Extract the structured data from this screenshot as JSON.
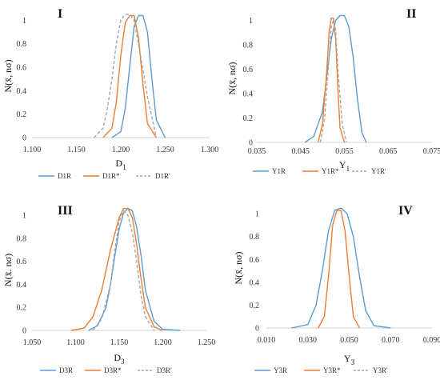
{
  "figure": {
    "ylabel": "N(x̄, nσ)"
  },
  "chart_data": [
    {
      "id": "I",
      "type": "line",
      "panel_label": "I",
      "xlabel_main": "D",
      "xlabel_sub": "1",
      "ylabel": "N(x̄, nσ)",
      "xlim": [
        1.1,
        1.3
      ],
      "ylim": [
        0,
        1.05
      ],
      "xticks": [
        1.1,
        1.15,
        1.2,
        1.25,
        1.3
      ],
      "xtick_labels": [
        "1.100",
        "1.150",
        "1.200",
        "1.250",
        "1.300"
      ],
      "yticks": [
        0,
        0.2,
        0.4,
        0.6,
        0.8,
        1
      ],
      "ytick_labels": [
        "0",
        "0.2",
        "0.4",
        "0.6",
        "0.8",
        "1"
      ],
      "legend_position": "bottom",
      "series": [
        {
          "name": "D1R",
          "color": "#5b9bd5",
          "dashed": false,
          "x": [
            1.19,
            1.2,
            1.205,
            1.21,
            1.215,
            1.22,
            1.225,
            1.23,
            1.235,
            1.24,
            1.25
          ],
          "y": [
            0,
            0.05,
            0.25,
            0.6,
            0.95,
            1.04,
            1.04,
            0.9,
            0.5,
            0.15,
            0
          ]
        },
        {
          "name": "D1R*",
          "color": "#ed7d31",
          "dashed": false,
          "x": [
            1.18,
            1.19,
            1.195,
            1.2,
            1.205,
            1.21,
            1.215,
            1.22,
            1.225,
            1.23,
            1.24
          ],
          "y": [
            0,
            0.08,
            0.3,
            0.7,
            0.98,
            1.04,
            1.04,
            0.85,
            0.45,
            0.12,
            0
          ]
        },
        {
          "name": "D1R'",
          "color": "#a5a5a5",
          "dashed": true,
          "x": [
            1.17,
            1.18,
            1.185,
            1.19,
            1.195,
            1.2,
            1.205,
            1.21,
            1.215,
            1.22,
            1.23,
            1.24
          ],
          "y": [
            0,
            0.08,
            0.25,
            0.5,
            0.8,
            1.0,
            1.05,
            1.05,
            1.0,
            0.8,
            0.35,
            0
          ]
        }
      ]
    },
    {
      "id": "II",
      "type": "line",
      "panel_label": "II",
      "xlabel_main": "Y",
      "xlabel_sub": "1",
      "ylabel": "N(x̄, nσ)",
      "xlim": [
        0.035,
        0.075
      ],
      "ylim": [
        0,
        1.05
      ],
      "xticks": [
        0.035,
        0.045,
        0.055,
        0.065,
        0.075
      ],
      "xtick_labels": [
        "0.035",
        "0.045",
        "0.055",
        "0.065",
        "0.075"
      ],
      "yticks": [
        0,
        0.2,
        0.4,
        0.6,
        0.8,
        1
      ],
      "ytick_labels": [
        "0",
        "0.2",
        "0.4",
        "0.6",
        "0.8",
        "1"
      ],
      "legend_position": "bottom",
      "series": [
        {
          "name": "Y1R",
          "color": "#5b9bd5",
          "dashed": false,
          "x": [
            0.046,
            0.048,
            0.05,
            0.051,
            0.052,
            0.053,
            0.054,
            0.055,
            0.056,
            0.057,
            0.058,
            0.059,
            0.06
          ],
          "y": [
            0,
            0.05,
            0.25,
            0.55,
            0.85,
            1.0,
            1.04,
            1.04,
            0.95,
            0.7,
            0.35,
            0.08,
            0
          ]
        },
        {
          "name": "Y1R*",
          "color": "#ed7d31",
          "dashed": false,
          "x": [
            0.049,
            0.05,
            0.051,
            0.0515,
            0.052,
            0.0525,
            0.053,
            0.0535,
            0.054,
            0.055
          ],
          "y": [
            0,
            0.15,
            0.6,
            0.9,
            1.02,
            1.02,
            0.85,
            0.45,
            0.12,
            0
          ]
        },
        {
          "name": "Y1R'",
          "color": "#a5a5a5",
          "dashed": true,
          "x": [
            0.0495,
            0.0505,
            0.0515,
            0.052,
            0.0525,
            0.053,
            0.0535,
            0.0545,
            0.0555
          ],
          "y": [
            0,
            0.2,
            0.7,
            0.95,
            1.0,
            0.92,
            0.6,
            0.15,
            0
          ]
        }
      ]
    },
    {
      "id": "III",
      "type": "line",
      "panel_label": "III",
      "xlabel_main": "D",
      "xlabel_sub": "3",
      "ylabel": "N(x̄. nσ)",
      "xlim": [
        1.05,
        1.25
      ],
      "ylim": [
        0,
        1.05
      ],
      "xticks": [
        1.05,
        1.1,
        1.15,
        1.2,
        1.25
      ],
      "xtick_labels": [
        "1.050",
        "1.100",
        "1.150",
        "1.200",
        "1.250"
      ],
      "yticks": [
        0,
        0.2,
        0.4,
        0.6,
        0.8,
        1
      ],
      "ytick_labels": [
        "0",
        "0.2",
        "0.4",
        "0.6",
        "0.8",
        "1"
      ],
      "legend_position": "bottom",
      "series": [
        {
          "name": "D3R",
          "color": "#5b9bd5",
          "dashed": false,
          "x": [
            1.115,
            1.125,
            1.135,
            1.14,
            1.145,
            1.15,
            1.155,
            1.16,
            1.165,
            1.17,
            1.175,
            1.18,
            1.19,
            1.2,
            1.22
          ],
          "y": [
            0,
            0.04,
            0.2,
            0.4,
            0.65,
            0.88,
            1.02,
            1.06,
            1.04,
            0.9,
            0.65,
            0.35,
            0.08,
            0.01,
            0
          ]
        },
        {
          "name": "D3R*",
          "color": "#ed7d31",
          "dashed": false,
          "x": [
            1.095,
            1.11,
            1.12,
            1.13,
            1.14,
            1.15,
            1.155,
            1.16,
            1.165,
            1.17,
            1.175,
            1.18,
            1.19,
            1.2
          ],
          "y": [
            0,
            0.02,
            0.12,
            0.35,
            0.7,
            0.98,
            1.06,
            1.06,
            0.98,
            0.75,
            0.45,
            0.2,
            0.03,
            0
          ]
        },
        {
          "name": "D3R'",
          "color": "#a5a5a5",
          "dashed": true,
          "x": [
            1.12,
            1.13,
            1.14,
            1.145,
            1.15,
            1.155,
            1.16,
            1.165,
            1.17,
            1.175,
            1.18,
            1.19
          ],
          "y": [
            0,
            0.1,
            0.4,
            0.7,
            0.95,
            1.04,
            1.0,
            0.85,
            0.6,
            0.3,
            0.12,
            0
          ]
        }
      ]
    },
    {
      "id": "IV",
      "type": "line",
      "panel_label": "IV",
      "xlabel_main": "Y",
      "xlabel_sub": "3",
      "ylabel": "N(x̄, nσ)",
      "xlim": [
        0.01,
        0.09
      ],
      "ylim": [
        0,
        1.05
      ],
      "xticks": [
        0.01,
        0.03,
        0.05,
        0.07,
        0.09
      ],
      "xtick_labels": [
        "0.010",
        "0.030",
        "0.050",
        "0.070",
        "0.090"
      ],
      "yticks": [
        0,
        0.2,
        0.4,
        0.6,
        0.8,
        1
      ],
      "ytick_labels": [
        "0",
        "0.2",
        "0.4",
        "0.6",
        "0.8",
        "1"
      ],
      "legend_position": "bottom",
      "series": [
        {
          "name": "Y3R",
          "color": "#5b9bd5",
          "dashed": false,
          "x": [
            0.022,
            0.03,
            0.034,
            0.037,
            0.04,
            0.043,
            0.046,
            0.049,
            0.052,
            0.055,
            0.058,
            0.062,
            0.07
          ],
          "y": [
            0,
            0.03,
            0.2,
            0.5,
            0.85,
            1.03,
            1.05,
            1.0,
            0.8,
            0.45,
            0.15,
            0.02,
            0
          ]
        },
        {
          "name": "Y3R*",
          "color": "#ed7d31",
          "dashed": false,
          "x": [
            0.035,
            0.038,
            0.04,
            0.042,
            0.044,
            0.046,
            0.048,
            0.05,
            0.052,
            0.055
          ],
          "y": [
            0,
            0.1,
            0.45,
            0.9,
            1.03,
            1.03,
            0.85,
            0.45,
            0.1,
            0
          ]
        },
        {
          "name": "Y3R'",
          "color": "#a5a5a5",
          "dashed": true,
          "x": [],
          "y": []
        }
      ]
    }
  ]
}
